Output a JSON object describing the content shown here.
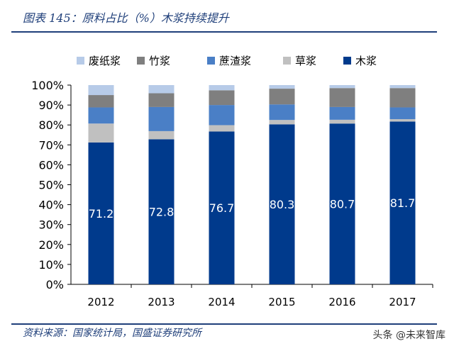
{
  "title": "图表 145：原料占比（%）木浆持续提升",
  "source": "资料来源：国家统计局，国盛证券研究所",
  "watermark": "头条 @未来智库",
  "chart_data": {
    "type": "bar",
    "stacked": true,
    "categories": [
      "2012",
      "2013",
      "2014",
      "2015",
      "2016",
      "2017"
    ],
    "ylim": [
      0,
      100
    ],
    "yticks": [
      "0%",
      "10%",
      "20%",
      "30%",
      "40%",
      "50%",
      "60%",
      "70%",
      "80%",
      "90%",
      "100%"
    ],
    "legend_position": "top",
    "grid": false,
    "series": [
      {
        "name": "木浆",
        "color": "#003a8c",
        "values": [
          71.2,
          72.8,
          76.7,
          80.3,
          80.7,
          81.7
        ],
        "labels": [
          "71.2",
          "72.8",
          "76.7",
          "80.3",
          "80.7",
          "81.7"
        ]
      },
      {
        "name": "草浆",
        "color": "#c0c0c0",
        "values": [
          9.5,
          4.1,
          3.2,
          2.2,
          1.9,
          1.2
        ]
      },
      {
        "name": "蔗渣浆",
        "color": "#4a7fc6",
        "values": [
          8.1,
          12.1,
          10.1,
          7.8,
          6.4,
          5.9
        ]
      },
      {
        "name": "竹浆",
        "color": "#7f7f7f",
        "values": [
          6.2,
          6.9,
          7.4,
          7.9,
          9.5,
          9.7
        ]
      },
      {
        "name": "废纸浆",
        "color": "#b7cbe8",
        "values": [
          5.0,
          4.1,
          2.6,
          1.8,
          1.5,
          1.5
        ]
      }
    ],
    "legend_order": [
      "废纸浆",
      "竹浆",
      "蔗渣浆",
      "草浆",
      "木浆"
    ]
  }
}
